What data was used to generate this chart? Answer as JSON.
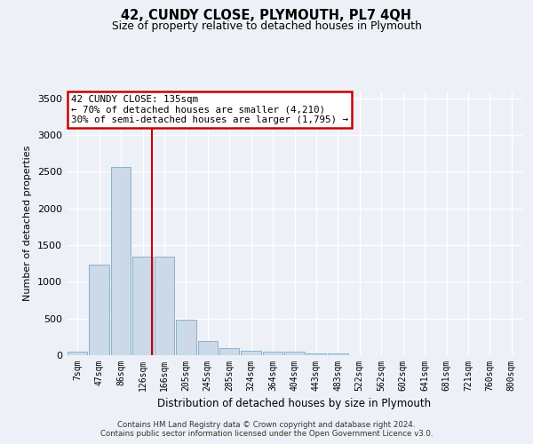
{
  "title": "42, CUNDY CLOSE, PLYMOUTH, PL7 4QH",
  "subtitle": "Size of property relative to detached houses in Plymouth",
  "xlabel": "Distribution of detached houses by size in Plymouth",
  "ylabel": "Number of detached properties",
  "bar_color": "#ccd9e8",
  "bar_edge_color": "#7aaac8",
  "categories": [
    "7sqm",
    "47sqm",
    "86sqm",
    "126sqm",
    "166sqm",
    "205sqm",
    "245sqm",
    "285sqm",
    "324sqm",
    "364sqm",
    "404sqm",
    "443sqm",
    "483sqm",
    "522sqm",
    "562sqm",
    "602sqm",
    "641sqm",
    "681sqm",
    "721sqm",
    "760sqm",
    "800sqm"
  ],
  "values": [
    50,
    1240,
    2570,
    1340,
    1340,
    490,
    190,
    100,
    55,
    50,
    50,
    30,
    30,
    0,
    0,
    0,
    0,
    0,
    0,
    0,
    0
  ],
  "ylim": [
    0,
    3600
  ],
  "yticks": [
    0,
    500,
    1000,
    1500,
    2000,
    2500,
    3000,
    3500
  ],
  "red_line_x": 3.42,
  "annotation_text": "42 CUNDY CLOSE: 135sqm\n← 70% of detached houses are smaller (4,210)\n30% of semi-detached houses are larger (1,795) →",
  "annotation_box_color": "#ffffff",
  "annotation_box_edge": "#cc0000",
  "red_line_color": "#cc0000",
  "footer_line1": "Contains HM Land Registry data © Crown copyright and database right 2024.",
  "footer_line2": "Contains public sector information licensed under the Open Government Licence v3.0.",
  "background_color": "#edf1f7",
  "plot_bg_color": "#edf1f7"
}
